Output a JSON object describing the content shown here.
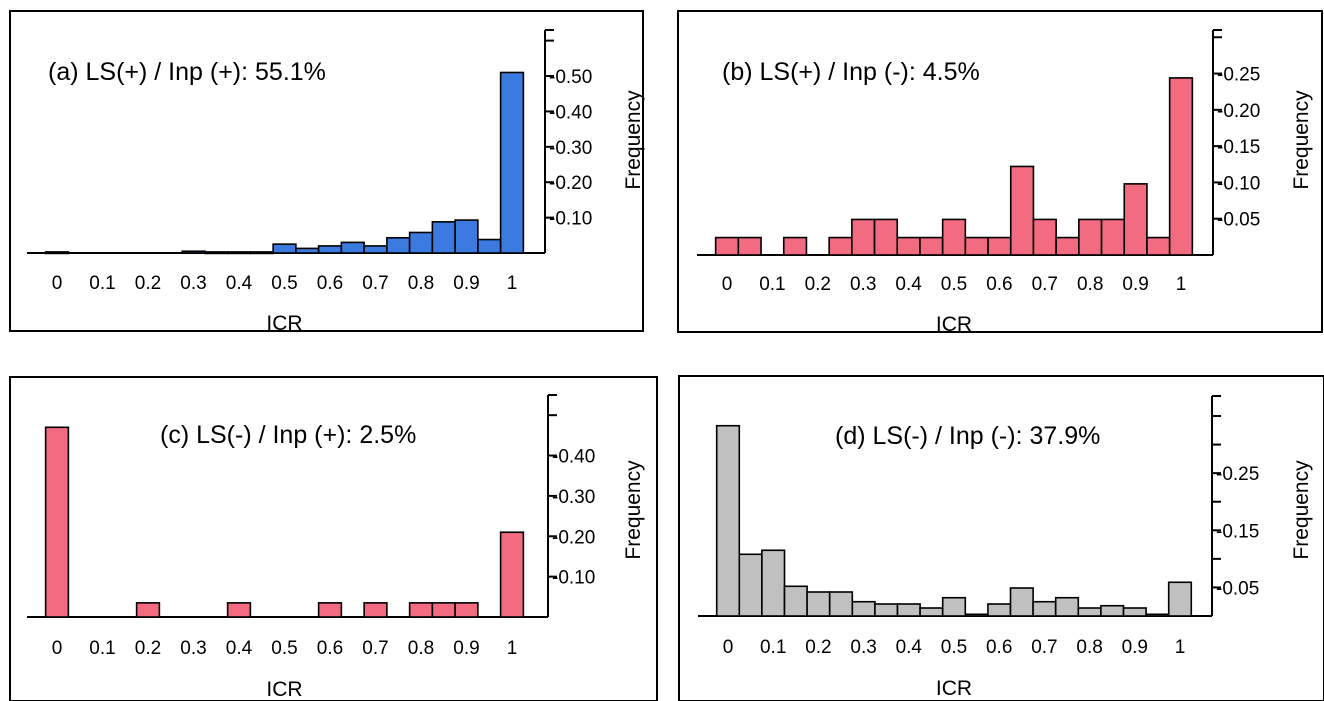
{
  "chart_data": [
    {
      "type": "bar",
      "panel": "a",
      "title": "(a) LS(+) / Inp (+): 55.1%",
      "xlabel": "ICR",
      "ylabel": "Frequency",
      "xlim": [
        0,
        1
      ],
      "x_ticks": [
        "0",
        "0.1",
        "0.2",
        "0.3",
        "0.4",
        "0.5",
        "0.6",
        "0.7",
        "0.8",
        "0.9",
        "1"
      ],
      "y_ticks": [
        "0.10",
        "0.20",
        "0.30",
        "0.40",
        "0.50"
      ],
      "bin_width": 0.05,
      "x": [
        0,
        0.05,
        0.1,
        0.15,
        0.2,
        0.25,
        0.3,
        0.35,
        0.4,
        0.45,
        0.5,
        0.55,
        0.6,
        0.65,
        0.7,
        0.75,
        0.8,
        0.85,
        0.9,
        0.95,
        1.0
      ],
      "values": [
        0.003,
        0,
        0,
        0,
        0,
        0,
        0.005,
        0.003,
        0.003,
        0.003,
        0.025,
        0.013,
        0.02,
        0.03,
        0.02,
        0.043,
        0.058,
        0.088,
        0.093,
        0.038,
        0.51
      ],
      "ylim": [
        0,
        0.63
      ],
      "color": "#3b7be0"
    },
    {
      "type": "bar",
      "panel": "b",
      "title": "(b) LS(+) / Inp (-): 4.5%",
      "xlabel": "ICR",
      "ylabel": "Frequency",
      "xlim": [
        0,
        1
      ],
      "x_ticks": [
        "0",
        "0.1",
        "0.2",
        "0.3",
        "0.4",
        "0.5",
        "0.6",
        "0.7",
        "0.8",
        "0.9",
        "1"
      ],
      "y_ticks": [
        "0.05",
        "0.10",
        "0.15",
        "0.20",
        "0.25"
      ],
      "bin_width": 0.05,
      "x": [
        0,
        0.05,
        0.1,
        0.15,
        0.2,
        0.25,
        0.3,
        0.35,
        0.4,
        0.45,
        0.5,
        0.55,
        0.6,
        0.65,
        0.7,
        0.75,
        0.8,
        0.85,
        0.9,
        0.95,
        1.0
      ],
      "values": [
        0.024,
        0.024,
        0,
        0.024,
        0,
        0.024,
        0.049,
        0.049,
        0.024,
        0.024,
        0.049,
        0.024,
        0.024,
        0.122,
        0.049,
        0.024,
        0.049,
        0.049,
        0.098,
        0.024,
        0.244
      ],
      "ylim": [
        0,
        0.31
      ],
      "color": "#f26b80"
    },
    {
      "type": "bar",
      "panel": "c",
      "title": "(c) LS(-) / Inp (+): 2.5%",
      "xlabel": "ICR",
      "ylabel": "Frequency",
      "xlim": [
        0,
        1
      ],
      "x_ticks": [
        "0",
        "0.1",
        "0.2",
        "0.3",
        "0.4",
        "0.5",
        "0.6",
        "0.7",
        "0.8",
        "0.9",
        "1"
      ],
      "y_ticks": [
        "0.10",
        "0.20",
        "0.30",
        "0.40"
      ],
      "bin_width": 0.05,
      "x": [
        0,
        0.05,
        0.1,
        0.15,
        0.2,
        0.25,
        0.3,
        0.35,
        0.4,
        0.45,
        0.5,
        0.55,
        0.6,
        0.65,
        0.7,
        0.75,
        0.8,
        0.85,
        0.9,
        0.95,
        1.0
      ],
      "values": [
        0.47,
        0,
        0,
        0,
        0.035,
        0,
        0,
        0,
        0.035,
        0,
        0,
        0,
        0.035,
        0,
        0.035,
        0,
        0.035,
        0.035,
        0.035,
        0,
        0.21
      ],
      "ylim": [
        0,
        0.55
      ],
      "color": "#f26b80"
    },
    {
      "type": "bar",
      "panel": "d",
      "title": "(d) LS(-) / Inp (-): 37.9%",
      "xlabel": "ICR",
      "ylabel": "Frequency",
      "xlim": [
        0,
        1
      ],
      "x_ticks": [
        "0",
        "0.1",
        "0.2",
        "0.3",
        "0.4",
        "0.5",
        "0.6",
        "0.7",
        "0.8",
        "0.9",
        "1"
      ],
      "y_ticks": [
        "0.05",
        "0.15",
        "0.25"
      ],
      "bin_width": 0.05,
      "x": [
        0,
        0.05,
        0.1,
        0.15,
        0.2,
        0.25,
        0.3,
        0.35,
        0.4,
        0.45,
        0.5,
        0.55,
        0.6,
        0.65,
        0.7,
        0.75,
        0.8,
        0.85,
        0.9,
        0.95,
        1.0
      ],
      "values": [
        0.333,
        0.108,
        0.115,
        0.052,
        0.042,
        0.042,
        0.025,
        0.021,
        0.021,
        0.014,
        0.032,
        0.003,
        0.021,
        0.049,
        0.025,
        0.032,
        0.014,
        0.018,
        0.014,
        0.003,
        0.059
      ],
      "ylim": [
        0,
        0.385
      ],
      "color": "#c0c0c0"
    }
  ]
}
